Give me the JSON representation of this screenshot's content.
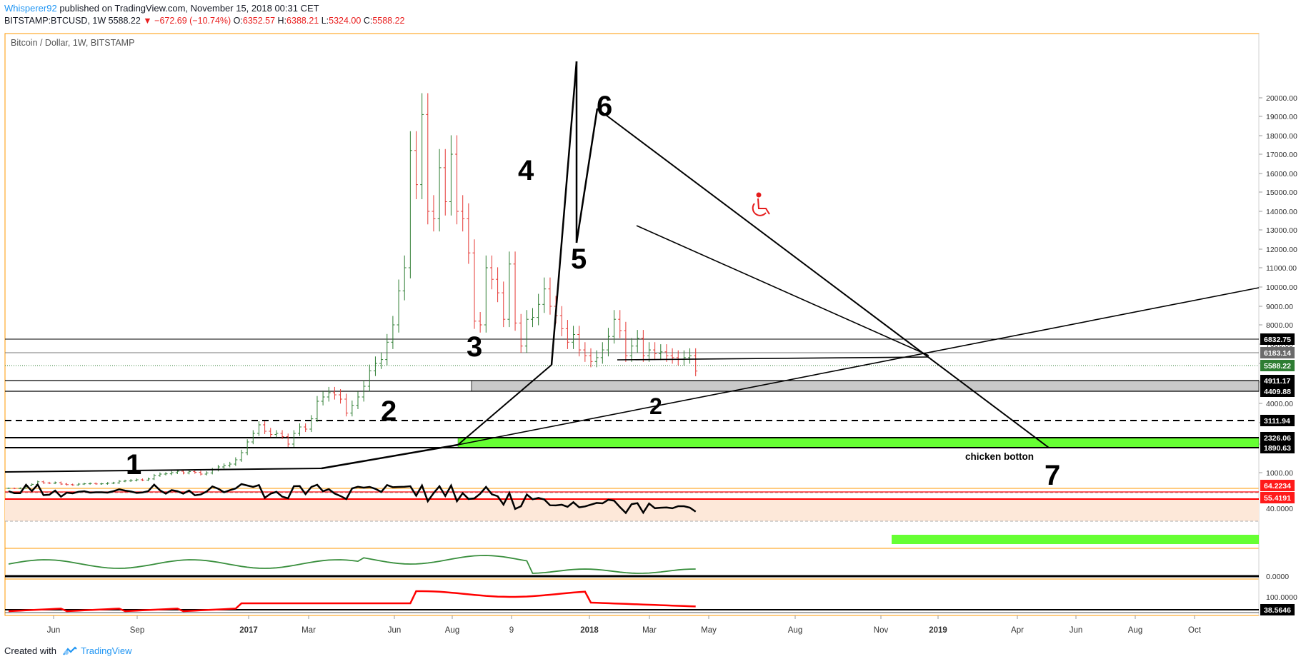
{
  "header": {
    "author": "Whisperer92",
    "published": "published on TradingView.com, November 15, 2018 00:31 CET",
    "symbol_line": "BITSTAMP:BTCUSD, 1W",
    "last": "5588.22",
    "change": "−672.69 (−10.74%)",
    "o_label": "O:",
    "o": "6352.57",
    "h_label": "H:",
    "h": "6388.21",
    "l_label": "L:",
    "l": "5324.00",
    "c_label": "C:",
    "c": "5588.22"
  },
  "footer": {
    "created_with": "Created with",
    "brand": "TradingView"
  },
  "colors": {
    "up": "#2e7d32",
    "down": "#e53935",
    "green_zone": "#66ff33",
    "gray_zone": "#bdbdbd",
    "frame": "#ff9800",
    "indicator_green": "#388e3c",
    "indicator_red": "#ff0000",
    "black": "#000000"
  },
  "chart_data": {
    "type": "candlestick",
    "title": "Bitcoin / Dollar, 1W, BITSTAMP",
    "ylim": [
      700,
      20300
    ],
    "yticks": [
      "1000.00",
      "2000.00",
      "3000.00",
      "4000.00",
      "5000.00",
      "6000.00",
      "7000.00",
      "8000.00",
      "9000.00",
      "10000.00",
      "11000.00",
      "12000.00",
      "13000.00",
      "14000.00",
      "15000.00",
      "16000.00",
      "17000.00",
      "18000.00",
      "19000.00",
      "20000.00"
    ],
    "xticks": [
      "Jun",
      "Sep",
      "2017",
      "Mar",
      "Jun",
      "Aug",
      "9",
      "2018",
      "Mar",
      "May",
      "Aug",
      "Nov",
      "2019",
      "Apr",
      "Jun",
      "Aug",
      "Oct"
    ],
    "price_tags": [
      {
        "label": "6832.75",
        "value": 6832.75,
        "style": "black"
      },
      {
        "label": "6183.14",
        "value": 6183.14,
        "style": "gray"
      },
      {
        "label": "5588.22",
        "value": 5588.22,
        "style": "green"
      },
      {
        "label": "4911.17",
        "value": 4911.17,
        "style": "black"
      },
      {
        "label": "4409.88",
        "value": 4409.88,
        "style": "black"
      },
      {
        "label": "3111.94",
        "value": 3111.94,
        "style": "black"
      },
      {
        "label": "2326.06",
        "value": 2326.06,
        "style": "black"
      },
      {
        "label": "1890.63",
        "value": 1890.63,
        "style": "black"
      }
    ],
    "ohlc_close": [
      450,
      445,
      455,
      560,
      590,
      680,
      640,
      630,
      650,
      600,
      580,
      570,
      600,
      610,
      620,
      605,
      610,
      630,
      640,
      700,
      710,
      730,
      750,
      740,
      780,
      900,
      950,
      960,
      1000,
      1050,
      990,
      1040,
      1010,
      950,
      990,
      1100,
      1200,
      1250,
      1300,
      1450,
      1700,
      2100,
      2500,
      2900,
      2600,
      2450,
      2500,
      2350,
      2000,
      2500,
      2800,
      2700,
      3200,
      4100,
      4300,
      4500,
      4400,
      4200,
      3500,
      3900,
      4300,
      4800,
      5600,
      6000,
      6200,
      7100,
      8000,
      9800,
      11000,
      17200,
      15400,
      19100,
      14000,
      13600,
      16300,
      14500,
      17000,
      14000,
      13600,
      11800,
      8200,
      8000,
      11000,
      10400,
      9700,
      8300,
      11200,
      8100,
      6900,
      8300,
      8400,
      9100,
      9900,
      9000,
      8500,
      7800,
      7100,
      7500,
      6700,
      6400,
      6100,
      6300,
      6700,
      7400,
      8300,
      7700,
      6400,
      6900,
      7300,
      6400,
      6700,
      6500,
      6600,
      6400,
      6300,
      6200,
      6300,
      6400,
      5588
    ],
    "annotations": [
      "1",
      "2",
      "3",
      "4",
      "5",
      "6",
      "2",
      "7",
      "chicken botton"
    ],
    "indicator_1": {
      "tags": [
        {
          "label": "64.2234",
          "style": "red"
        },
        {
          "label": "55.4191",
          "style": "red"
        }
      ],
      "ticks": [
        "40.0000"
      ]
    },
    "indicator_2": {
      "ticks": [
        "0.0000"
      ]
    },
    "indicator_3": {
      "tags": [
        {
          "label": "38.5646",
          "style": "black"
        }
      ],
      "ticks": [
        "100.0000"
      ]
    }
  }
}
